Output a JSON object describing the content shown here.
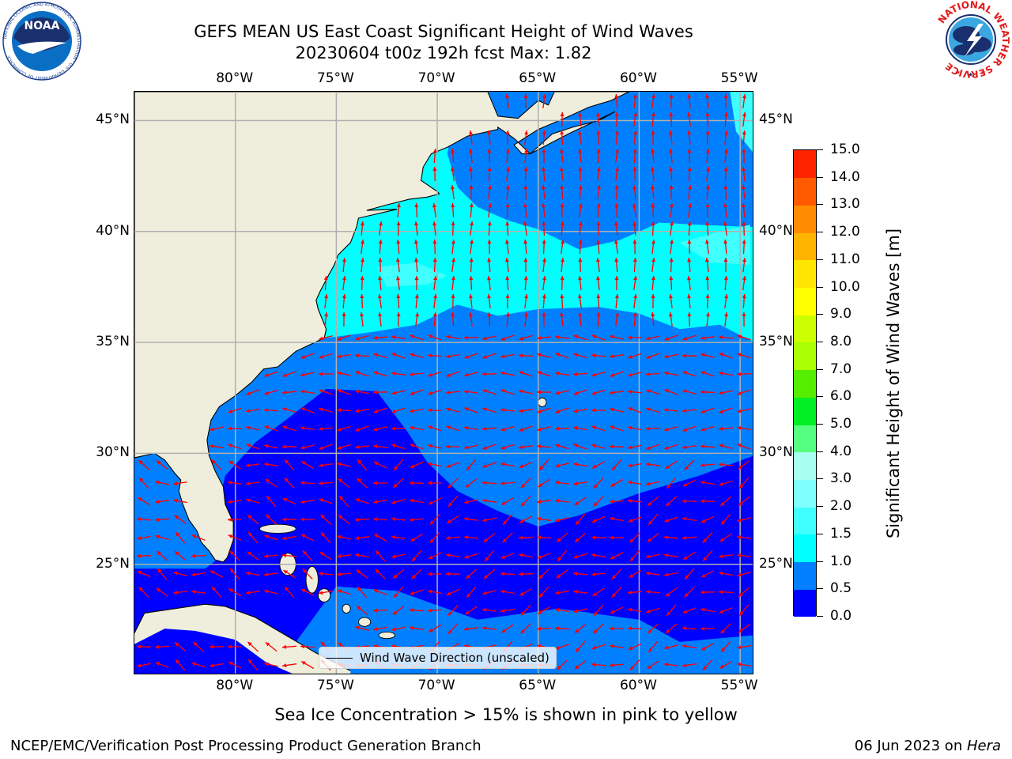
{
  "title_line1": "GEFS MEAN US East Coast Significant Height of Wind Waves",
  "title_line2": "20230604 t00z 192h fcst   Max: 1.82",
  "map": {
    "lon_labels": [
      "80°W",
      "75°W",
      "70°W",
      "65°W",
      "60°W",
      "55°W"
    ],
    "lat_labels": [
      "45°N",
      "40°N",
      "35°N",
      "30°N",
      "25°N"
    ],
    "lon_range": [
      -85,
      -54.3
    ],
    "lat_range": [
      20,
      46.3
    ],
    "gridlines": true,
    "land_color": "#efeedc",
    "arrow_color": "#ff0000"
  },
  "legend": {
    "label": "Wind Wave Direction (unscaled)",
    "position": "bottom-center"
  },
  "colorbar": {
    "title": "Significant Height of Wind Waves [m]",
    "tick_labels": [
      "0.0",
      "0.5",
      "1.0",
      "1.5",
      "2.0",
      "3.0",
      "4.0",
      "5.0",
      "6.0",
      "7.0",
      "8.0",
      "9.0",
      "10.0",
      "11.0",
      "12.0",
      "13.0",
      "14.0",
      "15.0"
    ],
    "colors": [
      "#0000ff",
      "#0080ff",
      "#00ffff",
      "#40ffff",
      "#80ffff",
      "#a8fff0",
      "#55ff7f",
      "#00ee22",
      "#55ee00",
      "#aaff00",
      "#ccff00",
      "#ffff00",
      "#ffe600",
      "#ffb400",
      "#ff8c00",
      "#ff5a00",
      "#ff2400"
    ]
  },
  "subcaption": "Sea Ice Concentration > 15% is shown in pink to yellow",
  "footer": {
    "left": "NCEP/EMC/Verification Post Processing Product Generation Branch",
    "right_prefix": "06 Jun 2023 on ",
    "right_host": "Hera"
  },
  "logos": {
    "noaa_text": "NOAA",
    "noaa_ring": "NATIONAL OCEANIC AND ATMOSPHERIC ADMINISTRATION · U.S. DEPARTMENT OF COMMERCE",
    "nws_ring": "NATIONAL WEATHER SERVICE"
  }
}
